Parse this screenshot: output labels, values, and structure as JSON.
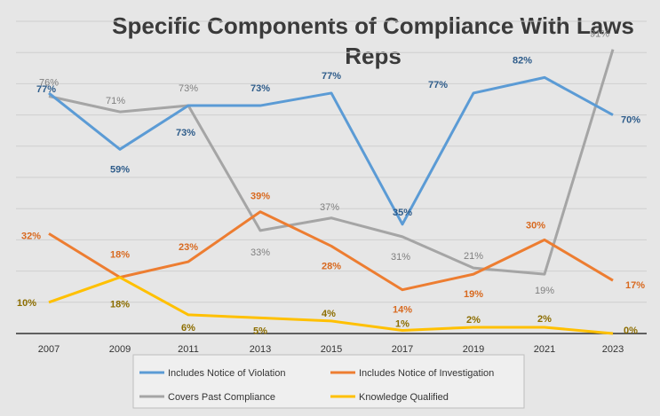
{
  "chart_data": {
    "type": "line",
    "title_line1": "Specific Components of Compliance With Laws",
    "title_line2": "Reps",
    "categories": [
      "2007",
      "2009",
      "2011",
      "2013",
      "2015",
      "2017",
      "2019",
      "2021",
      "2023"
    ],
    "ylim": [
      0,
      100
    ],
    "grid": true,
    "legend_position": "bottom",
    "series": [
      {
        "name": "Includes Notice of Violation",
        "color": "#5b9bd5",
        "values": [
          77,
          59,
          73,
          73,
          77,
          35,
          77,
          82,
          70
        ],
        "labels": [
          "77%",
          "59%",
          "73%",
          "73%",
          "77%",
          "35%",
          "77%",
          "82%",
          "70%"
        ]
      },
      {
        "name": "Includes Notice of Investigation",
        "color": "#ed7d31",
        "values": [
          32,
          18,
          23,
          39,
          28,
          14,
          19,
          30,
          17
        ],
        "labels": [
          "32%",
          "18%",
          "23%",
          "39%",
          "28%",
          "14%",
          "19%",
          "30%",
          "17%"
        ]
      },
      {
        "name": "Covers Past Compliance",
        "color": "#a5a5a5",
        "values": [
          76,
          71,
          73,
          33,
          37,
          31,
          21,
          19,
          91
        ],
        "labels": [
          "76%",
          "71%",
          "73%",
          "33%",
          "37%",
          "31%",
          "21%",
          "19%",
          "91%"
        ]
      },
      {
        "name": "Knowledge Qualified",
        "color": "#ffc000",
        "values": [
          10,
          18,
          6,
          5,
          4,
          1,
          2,
          2,
          0
        ],
        "labels": [
          "10%",
          "18%",
          "6%",
          "5%",
          "4%",
          "1%",
          "2%",
          "2%",
          "0%"
        ]
      }
    ]
  }
}
